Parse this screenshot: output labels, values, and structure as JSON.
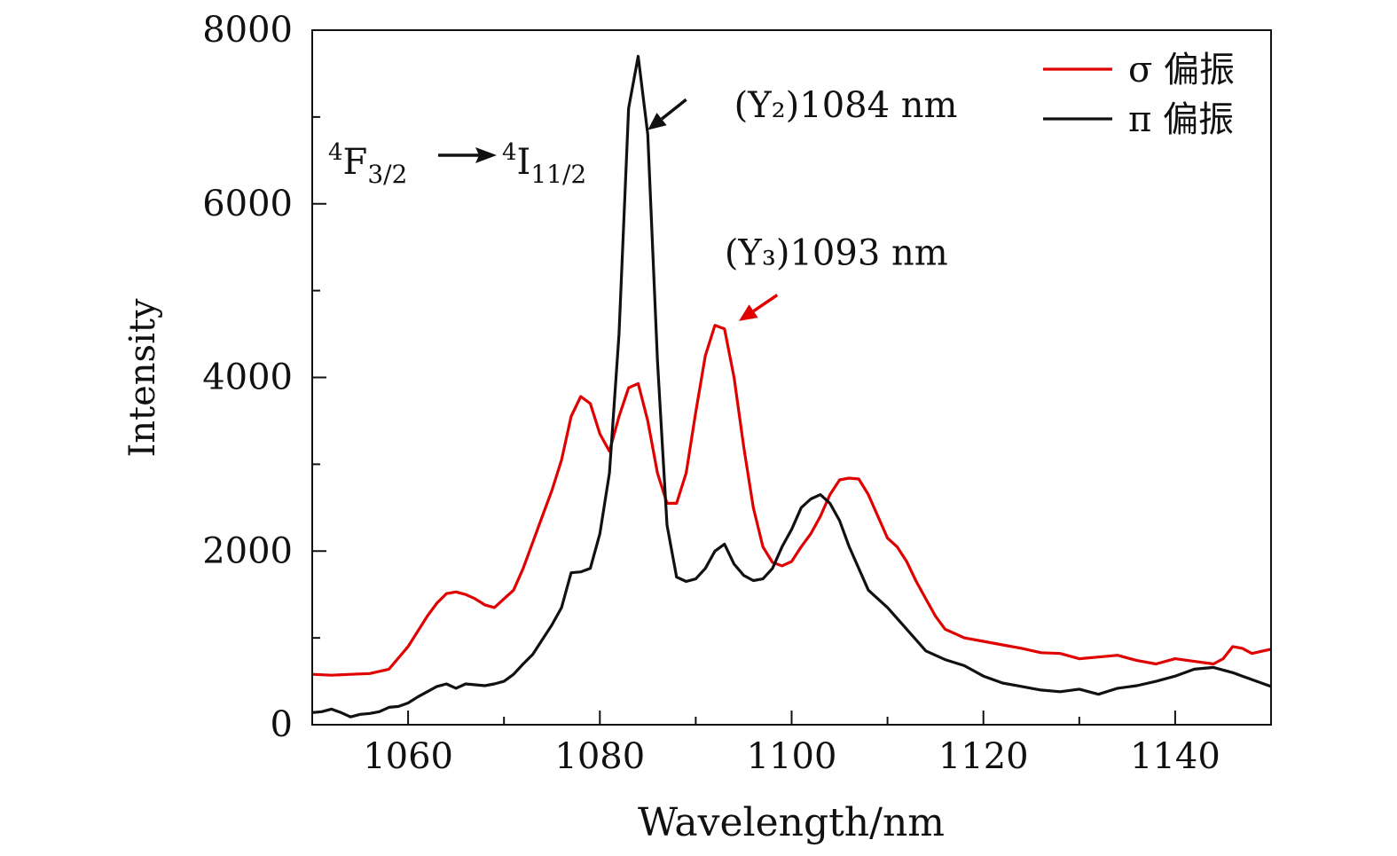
{
  "chart_data": {
    "type": "line",
    "xlabel": "Wavelength/nm",
    "ylabel": "Intensity",
    "xlim": [
      1050,
      1150
    ],
    "ylim": [
      0,
      8000
    ],
    "x_ticks": [
      1060,
      1080,
      1100,
      1120,
      1140
    ],
    "x_tick_labels": [
      "1060",
      "1080",
      "1100",
      "1120",
      "1140"
    ],
    "x_minor_ticks": [
      1070,
      1090,
      1110,
      1130
    ],
    "y_ticks": [
      0,
      2000,
      4000,
      6000,
      8000
    ],
    "y_tick_labels": [
      "0",
      "2000",
      "4000",
      "6000",
      "8000"
    ],
    "y_minor_ticks": [
      1000,
      3000,
      5000,
      7000
    ],
    "grid": false,
    "legend_position": "top-right",
    "series": [
      {
        "name": "σ 偏振",
        "color": "#e00000",
        "points": [
          [
            1050,
            580
          ],
          [
            1052,
            570
          ],
          [
            1054,
            580
          ],
          [
            1056,
            590
          ],
          [
            1058,
            640
          ],
          [
            1060,
            900
          ],
          [
            1062,
            1250
          ],
          [
            1063,
            1400
          ],
          [
            1064,
            1510
          ],
          [
            1065,
            1530
          ],
          [
            1066,
            1500
          ],
          [
            1067,
            1450
          ],
          [
            1068,
            1380
          ],
          [
            1069,
            1350
          ],
          [
            1070,
            1450
          ],
          [
            1071,
            1550
          ],
          [
            1072,
            1800
          ],
          [
            1073,
            2100
          ],
          [
            1074,
            2400
          ],
          [
            1075,
            2700
          ],
          [
            1076,
            3050
          ],
          [
            1077,
            3550
          ],
          [
            1078,
            3780
          ],
          [
            1079,
            3700
          ],
          [
            1080,
            3350
          ],
          [
            1081,
            3150
          ],
          [
            1082,
            3550
          ],
          [
            1083,
            3880
          ],
          [
            1084,
            3930
          ],
          [
            1085,
            3500
          ],
          [
            1086,
            2900
          ],
          [
            1087,
            2550
          ],
          [
            1088,
            2550
          ],
          [
            1089,
            2900
          ],
          [
            1090,
            3600
          ],
          [
            1091,
            4250
          ],
          [
            1092,
            4600
          ],
          [
            1093,
            4560
          ],
          [
            1094,
            4000
          ],
          [
            1095,
            3200
          ],
          [
            1096,
            2500
          ],
          [
            1097,
            2050
          ],
          [
            1098,
            1870
          ],
          [
            1099,
            1830
          ],
          [
            1100,
            1880
          ],
          [
            1101,
            2050
          ],
          [
            1102,
            2200
          ],
          [
            1103,
            2400
          ],
          [
            1104,
            2650
          ],
          [
            1105,
            2820
          ],
          [
            1106,
            2840
          ],
          [
            1107,
            2830
          ],
          [
            1108,
            2650
          ],
          [
            1109,
            2400
          ],
          [
            1110,
            2150
          ],
          [
            1111,
            2050
          ],
          [
            1112,
            1880
          ],
          [
            1113,
            1650
          ],
          [
            1114,
            1450
          ],
          [
            1115,
            1250
          ],
          [
            1116,
            1100
          ],
          [
            1117,
            1050
          ],
          [
            1118,
            1000
          ],
          [
            1120,
            960
          ],
          [
            1122,
            920
          ],
          [
            1124,
            880
          ],
          [
            1126,
            830
          ],
          [
            1128,
            820
          ],
          [
            1130,
            760
          ],
          [
            1132,
            780
          ],
          [
            1134,
            800
          ],
          [
            1136,
            740
          ],
          [
            1138,
            700
          ],
          [
            1140,
            760
          ],
          [
            1142,
            730
          ],
          [
            1144,
            700
          ],
          [
            1145,
            760
          ],
          [
            1146,
            900
          ],
          [
            1147,
            880
          ],
          [
            1148,
            820
          ],
          [
            1150,
            870
          ]
        ]
      },
      {
        "name": "π 偏振",
        "color": "#111111",
        "points": [
          [
            1050,
            140
          ],
          [
            1051,
            150
          ],
          [
            1052,
            180
          ],
          [
            1053,
            140
          ],
          [
            1054,
            90
          ],
          [
            1055,
            120
          ],
          [
            1056,
            130
          ],
          [
            1057,
            150
          ],
          [
            1058,
            200
          ],
          [
            1059,
            210
          ],
          [
            1060,
            250
          ],
          [
            1061,
            320
          ],
          [
            1062,
            380
          ],
          [
            1063,
            440
          ],
          [
            1064,
            470
          ],
          [
            1065,
            420
          ],
          [
            1066,
            470
          ],
          [
            1067,
            460
          ],
          [
            1068,
            450
          ],
          [
            1069,
            470
          ],
          [
            1070,
            500
          ],
          [
            1071,
            580
          ],
          [
            1072,
            700
          ],
          [
            1073,
            810
          ],
          [
            1074,
            980
          ],
          [
            1075,
            1150
          ],
          [
            1076,
            1350
          ],
          [
            1077,
            1750
          ],
          [
            1078,
            1760
          ],
          [
            1079,
            1800
          ],
          [
            1080,
            2200
          ],
          [
            1081,
            2900
          ],
          [
            1082,
            4500
          ],
          [
            1083,
            7100
          ],
          [
            1084,
            7700
          ],
          [
            1085,
            6800
          ],
          [
            1086,
            4200
          ],
          [
            1087,
            2300
          ],
          [
            1088,
            1700
          ],
          [
            1089,
            1650
          ],
          [
            1090,
            1680
          ],
          [
            1091,
            1800
          ],
          [
            1092,
            2000
          ],
          [
            1093,
            2080
          ],
          [
            1094,
            1850
          ],
          [
            1095,
            1720
          ],
          [
            1096,
            1660
          ],
          [
            1097,
            1680
          ],
          [
            1098,
            1800
          ],
          [
            1099,
            2050
          ],
          [
            1100,
            2250
          ],
          [
            1101,
            2500
          ],
          [
            1102,
            2600
          ],
          [
            1103,
            2650
          ],
          [
            1104,
            2550
          ],
          [
            1105,
            2350
          ],
          [
            1106,
            2050
          ],
          [
            1107,
            1800
          ],
          [
            1108,
            1550
          ],
          [
            1110,
            1350
          ],
          [
            1112,
            1100
          ],
          [
            1114,
            850
          ],
          [
            1116,
            750
          ],
          [
            1118,
            680
          ],
          [
            1120,
            560
          ],
          [
            1122,
            480
          ],
          [
            1124,
            440
          ],
          [
            1126,
            400
          ],
          [
            1128,
            380
          ],
          [
            1130,
            410
          ],
          [
            1132,
            350
          ],
          [
            1134,
            420
          ],
          [
            1136,
            450
          ],
          [
            1138,
            500
          ],
          [
            1140,
            560
          ],
          [
            1142,
            640
          ],
          [
            1144,
            660
          ],
          [
            1146,
            600
          ],
          [
            1148,
            520
          ],
          [
            1150,
            440
          ]
        ]
      }
    ],
    "annotations": [
      {
        "text": "(Y₂)1084 nm",
        "x": 1094,
        "y": 7000,
        "arrow_to": [
          1085,
          6850
        ],
        "arrow_from": [
          1089,
          7200
        ],
        "color": "#111111"
      },
      {
        "text": "(Y₃)1093 nm",
        "x": 1093,
        "y": 5300,
        "arrow_to": [
          1094.5,
          4650
        ],
        "arrow_from": [
          1098.5,
          4950
        ],
        "color": "#e00000"
      }
    ],
    "transition_label": {
      "from_base": "F",
      "from_sup": "4",
      "from_sub": "3/2",
      "to_base": "I",
      "to_sup": "4",
      "to_sub": "11/2"
    }
  }
}
